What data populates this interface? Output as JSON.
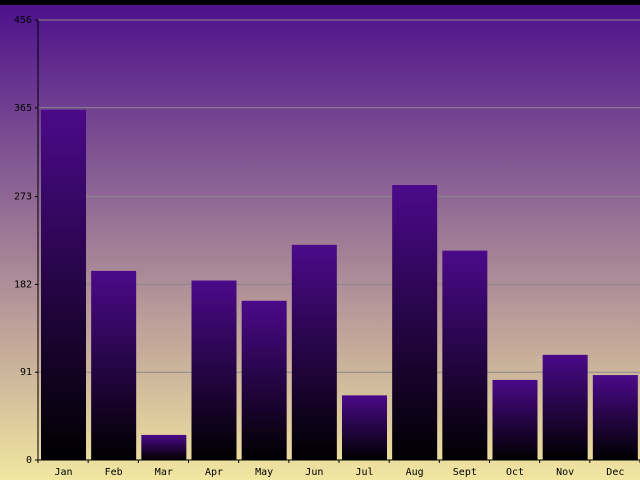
{
  "chart_data": {
    "type": "bar",
    "title": "",
    "xlabel": "",
    "ylabel": "",
    "categories": [
      "Jan",
      "Feb",
      "Mar",
      "Apr",
      "May",
      "Jun",
      "Jul",
      "Aug",
      "Sept",
      "Oct",
      "Nov",
      "Dec"
    ],
    "values": [
      363,
      196,
      26,
      186,
      165,
      223,
      67,
      285,
      217,
      83,
      109,
      88
    ],
    "yticks": [
      "0",
      "91",
      "182",
      "273",
      "365",
      "456"
    ],
    "ylim": [
      0,
      456
    ],
    "grid": true,
    "legend": "none"
  },
  "colors": {
    "background_top": "#4b0f8c",
    "background_bottom": "#f2e6a0",
    "bar_top": "#4b0a8a",
    "bar_bottom": "#000000",
    "gridline": "#8a8a8a",
    "axis": "#000000",
    "top_band": "#000000"
  }
}
